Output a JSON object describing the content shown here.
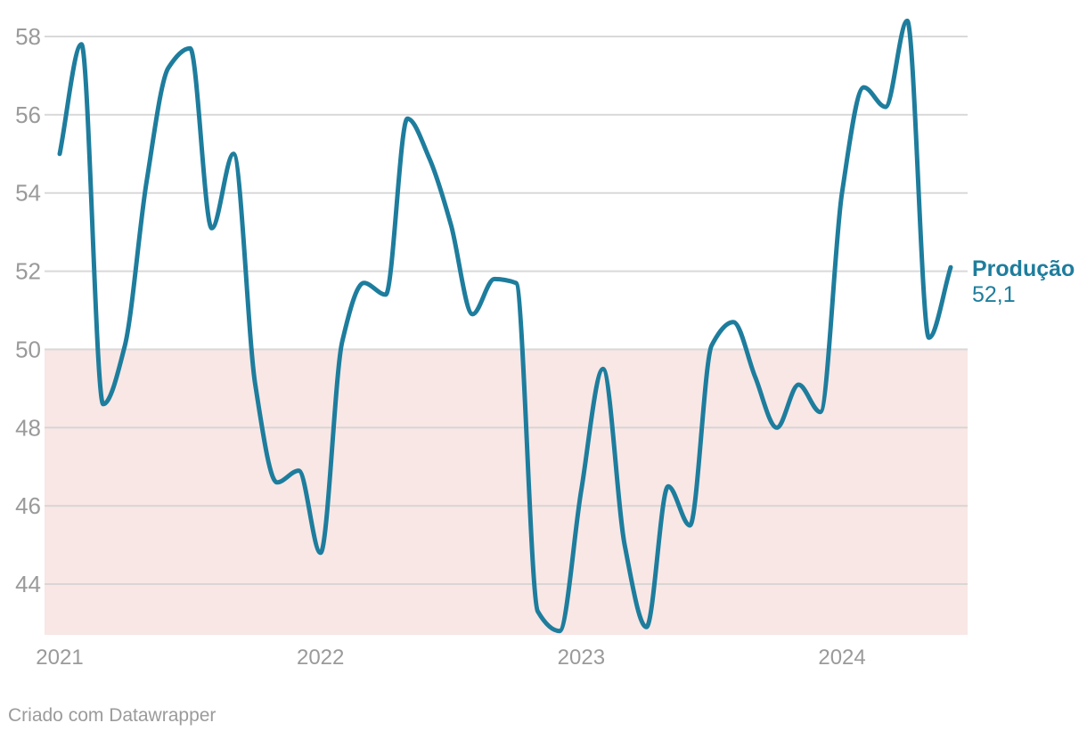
{
  "chart_data": {
    "type": "line",
    "title": "",
    "series_label": "Produção",
    "last_value_label": "52,1",
    "last_value": 52.1,
    "x_unit": "month",
    "months": [
      "2021-01",
      "2021-02",
      "2021-03",
      "2021-04",
      "2021-05",
      "2021-06",
      "2021-07",
      "2021-08",
      "2021-09",
      "2021-10",
      "2021-11",
      "2021-12",
      "2022-01",
      "2022-02",
      "2022-03",
      "2022-04",
      "2022-05",
      "2022-06",
      "2022-07",
      "2022-08",
      "2022-09",
      "2022-10",
      "2022-11",
      "2022-12",
      "2023-01",
      "2023-02",
      "2023-03",
      "2023-04",
      "2023-05",
      "2023-06",
      "2023-07",
      "2023-08",
      "2023-09",
      "2023-10",
      "2023-11",
      "2023-12",
      "2024-01",
      "2024-02",
      "2024-03",
      "2024-04",
      "2024-05",
      "2024-06"
    ],
    "values": [
      55.0,
      57.8,
      48.6,
      50.1,
      54.3,
      57.2,
      57.7,
      53.1,
      55.0,
      49.1,
      46.6,
      46.9,
      44.8,
      50.2,
      51.7,
      51.4,
      55.9,
      54.9,
      53.2,
      50.9,
      51.8,
      51.7,
      43.3,
      42.8,
      46.4,
      49.5,
      45.0,
      42.9,
      46.5,
      45.5,
      50.1,
      50.7,
      49.3,
      48.0,
      49.1,
      48.4,
      54.0,
      56.7,
      56.2,
      58.4,
      50.3,
      52.1
    ],
    "y_ticks": [
      58,
      56,
      54,
      52,
      50,
      48,
      46,
      44
    ],
    "ylim": [
      42.7,
      58.9
    ],
    "x_ticks": [
      {
        "label": "2021",
        "month_index": 0
      },
      {
        "label": "2022",
        "month_index": 12
      },
      {
        "label": "2023",
        "month_index": 24
      },
      {
        "label": "2024",
        "month_index": 36
      }
    ],
    "grid": "horizontal",
    "legend": "none",
    "curve": "monotone",
    "highlight_range": {
      "below": 50,
      "color": "#f8e7e5"
    },
    "colors": {
      "line": "#1e7d9d",
      "grid": "#d2d2d2",
      "axis_text": "#9a9a9a",
      "label_text": "#1e7d9d",
      "highlight": "#f8e7e5",
      "footer_text": "#9b9b9b"
    }
  },
  "footer": {
    "prefix": "Criado com ",
    "link_label": "Datawrapper"
  }
}
